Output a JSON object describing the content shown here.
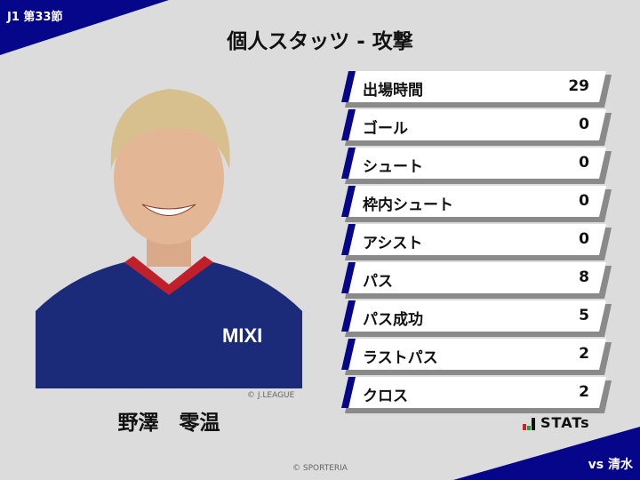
{
  "round": "J1 第33節",
  "title": "個人スタッツ - 攻撃",
  "player": {
    "name": "野澤　零温",
    "photo_credit": "© J.LEAGUE"
  },
  "stats": [
    {
      "label": "出場時間",
      "value": "29"
    },
    {
      "label": "ゴール",
      "value": "0"
    },
    {
      "label": "シュート",
      "value": "0"
    },
    {
      "label": "枠内シュート",
      "value": "0"
    },
    {
      "label": "アシスト",
      "value": "0"
    },
    {
      "label": "パス",
      "value": "8"
    },
    {
      "label": "パス成功",
      "value": "5"
    },
    {
      "label": "ラストパス",
      "value": "2"
    },
    {
      "label": "クロス",
      "value": "2"
    }
  ],
  "logo": {
    "text": "STATs"
  },
  "opponent": "vs 清水",
  "copyright": "© SPORTERIA",
  "colors": {
    "accent": "#06068a",
    "background": "#dcdcdc"
  }
}
